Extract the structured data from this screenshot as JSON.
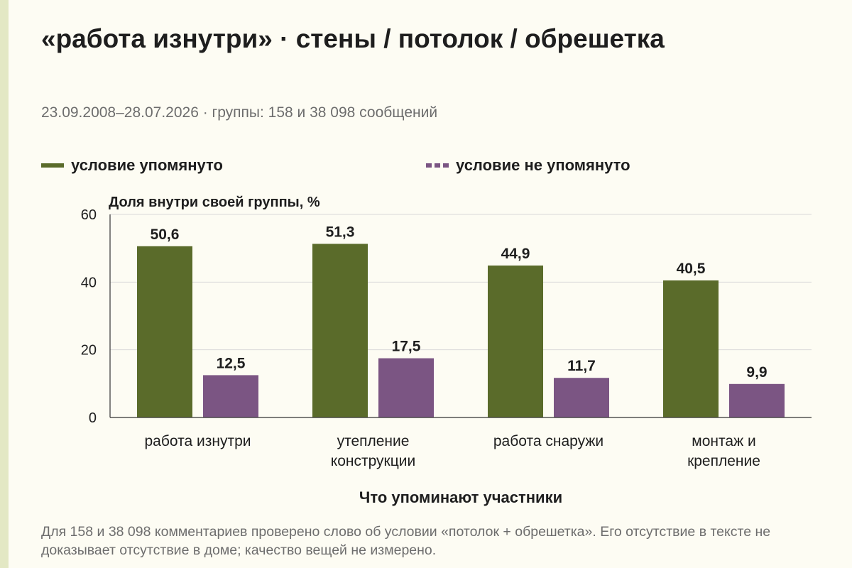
{
  "title": "«работа изнутри» · стены / потолок / обрешетка",
  "subtitle": "23.09.2008–28.07.2026 · группы: 158 и 38 098 сообщений",
  "footnote": "Для 158 и 38 098 комментариев проверено слово об условии «потолок + обрешетка». Его отсутствие в тексте не доказывает отсутствие в доме; качество вещей не измерено.",
  "colors": {
    "series1": "#5a6b2a",
    "series2": "#7b5583",
    "grid": "#d9d9d9",
    "axis": "#333333"
  },
  "chart_data": {
    "type": "bar",
    "title": "«работа изнутри» · стены / потолок / обрешетка",
    "ylabel": "Доля внутри своей группы, %",
    "xlabel": "Что упоминают участники",
    "ylim": [
      0,
      60
    ],
    "yticks": [
      0,
      20,
      40,
      60
    ],
    "grid": true,
    "legend_position": "top",
    "categories": [
      [
        "работа изнутри"
      ],
      [
        "утепление",
        "конструкции"
      ],
      [
        "работа снаружи"
      ],
      [
        "монтаж и",
        "крепление"
      ]
    ],
    "series": [
      {
        "name": "условие упомянуто",
        "values": [
          50.6,
          51.3,
          44.9,
          40.5
        ],
        "labels": [
          "50,6",
          "51,3",
          "44,9",
          "40,5"
        ]
      },
      {
        "name": "условие не упомянуто",
        "values": [
          12.5,
          17.5,
          11.7,
          9.9
        ],
        "labels": [
          "12,5",
          "17,5",
          "11,7",
          "9,9"
        ]
      }
    ]
  }
}
